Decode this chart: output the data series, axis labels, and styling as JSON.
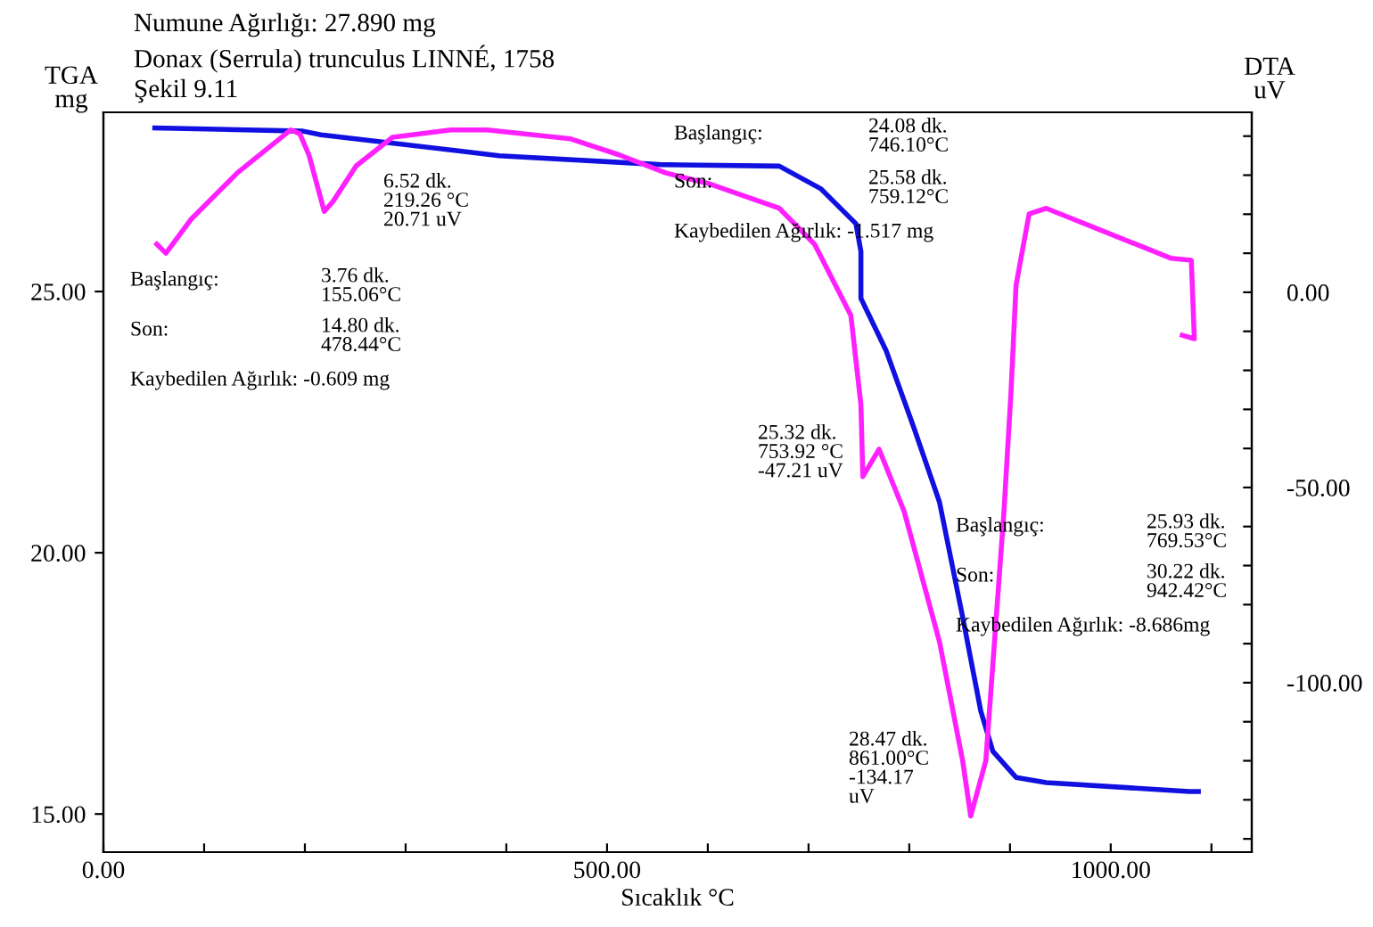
{
  "chart_data": {
    "type": "line",
    "title": "Numune Ağırlığı: 27.890 mg",
    "subtitle": "Donax (Serrula) trunculus LINNÉ, 1758",
    "xlabel": "Sıcaklık °C",
    "ylabel": "TGA\nmg",
    "y2label": "DTA\nuV",
    "xlim": [
      0,
      1140
    ],
    "ylim": [
      14.27,
      28.43
    ],
    "y2lim": [
      -143.4,
      46.1
    ],
    "xticks": [
      {
        "value": 0,
        "label": "0.00"
      },
      {
        "value": 100,
        "label": null
      },
      {
        "value": 200,
        "label": null
      },
      {
        "value": 300,
        "label": null
      },
      {
        "value": 400,
        "label": null
      },
      {
        "value": 500,
        "label": "500.00"
      },
      {
        "value": 600,
        "label": null
      },
      {
        "value": 700,
        "label": null
      },
      {
        "value": 800,
        "label": null
      },
      {
        "value": 900,
        "label": null
      },
      {
        "value": 1000,
        "label": "1000.00"
      },
      {
        "value": 1100,
        "label": null
      }
    ],
    "yticks": [
      {
        "value": 15,
        "label": "15.00"
      },
      {
        "value": 20,
        "label": "20.00"
      },
      {
        "value": 25,
        "label": "25.00"
      }
    ],
    "y2ticks": [
      {
        "value": -140,
        "label": null
      },
      {
        "value": -130,
        "label": null
      },
      {
        "value": -120,
        "label": null
      },
      {
        "value": -110,
        "label": null
      },
      {
        "value": -100,
        "label": "-100.00"
      },
      {
        "value": -90,
        "label": null
      },
      {
        "value": -80,
        "label": null
      },
      {
        "value": -70,
        "label": null
      },
      {
        "value": -60,
        "label": null
      },
      {
        "value": -50,
        "label": "-50.00"
      },
      {
        "value": -40,
        "label": null
      },
      {
        "value": -30,
        "label": null
      },
      {
        "value": -20,
        "label": null
      },
      {
        "value": -10,
        "label": null
      },
      {
        "value": 0,
        "label": "0.00"
      },
      {
        "value": 10,
        "label": null
      },
      {
        "value": 20,
        "label": null
      },
      {
        "value": 30,
        "label": null
      },
      {
        "value": 40,
        "label": null
      }
    ],
    "grid": false,
    "legend": false,
    "marker": "none",
    "line_style": "solid",
    "series": [
      {
        "color": "#1010e0",
        "x": [
          51,
          198,
          216,
          393,
          552,
          671,
          712,
          747,
          752,
          752,
          777,
          805,
          830,
          853,
          871,
          883,
          906,
          936,
          1078,
          1087
        ],
        "values": [
          28.13,
          28.07,
          28.0,
          27.6,
          27.43,
          27.4,
          26.97,
          26.3,
          25.77,
          24.87,
          23.87,
          22.37,
          20.97,
          18.77,
          16.97,
          16.2,
          15.7,
          15.6,
          15.43,
          15.43
        ]
      },
      {
        "color": "#ff20ff",
        "axis": "y2",
        "x": [
          53,
          62,
          87,
          133,
          186,
          195,
          204,
          219.26,
          228,
          251,
          287,
          345,
          381,
          464,
          512,
          558,
          600,
          671,
          706,
          742,
          752,
          753.92,
          770,
          795,
          830,
          853,
          861,
          876,
          894,
          901,
          906,
          919,
          936,
          1060,
          1080,
          1083,
          1071
        ],
        "values": [
          12.3,
          10.0,
          18.7,
          30.6,
          41.6,
          40.6,
          35.2,
          20.71,
          23.3,
          32.4,
          39.7,
          41.6,
          41.6,
          39.3,
          35.2,
          30.6,
          27.9,
          21.5,
          12.3,
          -5.9,
          -28.8,
          -47.21,
          -40.2,
          -56.2,
          -89.5,
          -120,
          -134.17,
          -120,
          -56.2,
          -25.6,
          1.8,
          20.1,
          21.5,
          8.7,
          8.2,
          -11.9,
          -11.0
        ]
      }
    ],
    "annotations": [
      "Şekil 9.11",
      "6.52 dk.\n219.26 °C\n20.71 uV",
      "Başlangıç:",
      "3.76 dk.\n155.06°C",
      "Son:",
      "14.80 dk.\n478.44°C",
      "Kaybedilen Ağırlık: -0.609 mg",
      "Başlangıç:",
      "24.08 dk.\n746.10°C",
      "Son:",
      "25.58 dk.\n759.12°C",
      "Kaybedilen Ağırlık: -1.517 mg",
      "25.32 dk.\n753.92 °C\n-47.21 uV",
      "Başlangıç:",
      "25.93 dk.\n769.53°C",
      "Son:",
      "30.22 dk.\n942.42°C",
      "Kaybedilen Ağırlık: -8.686mg",
      "28.47 dk.\n861.00°C\n-134.17\nuV"
    ]
  }
}
